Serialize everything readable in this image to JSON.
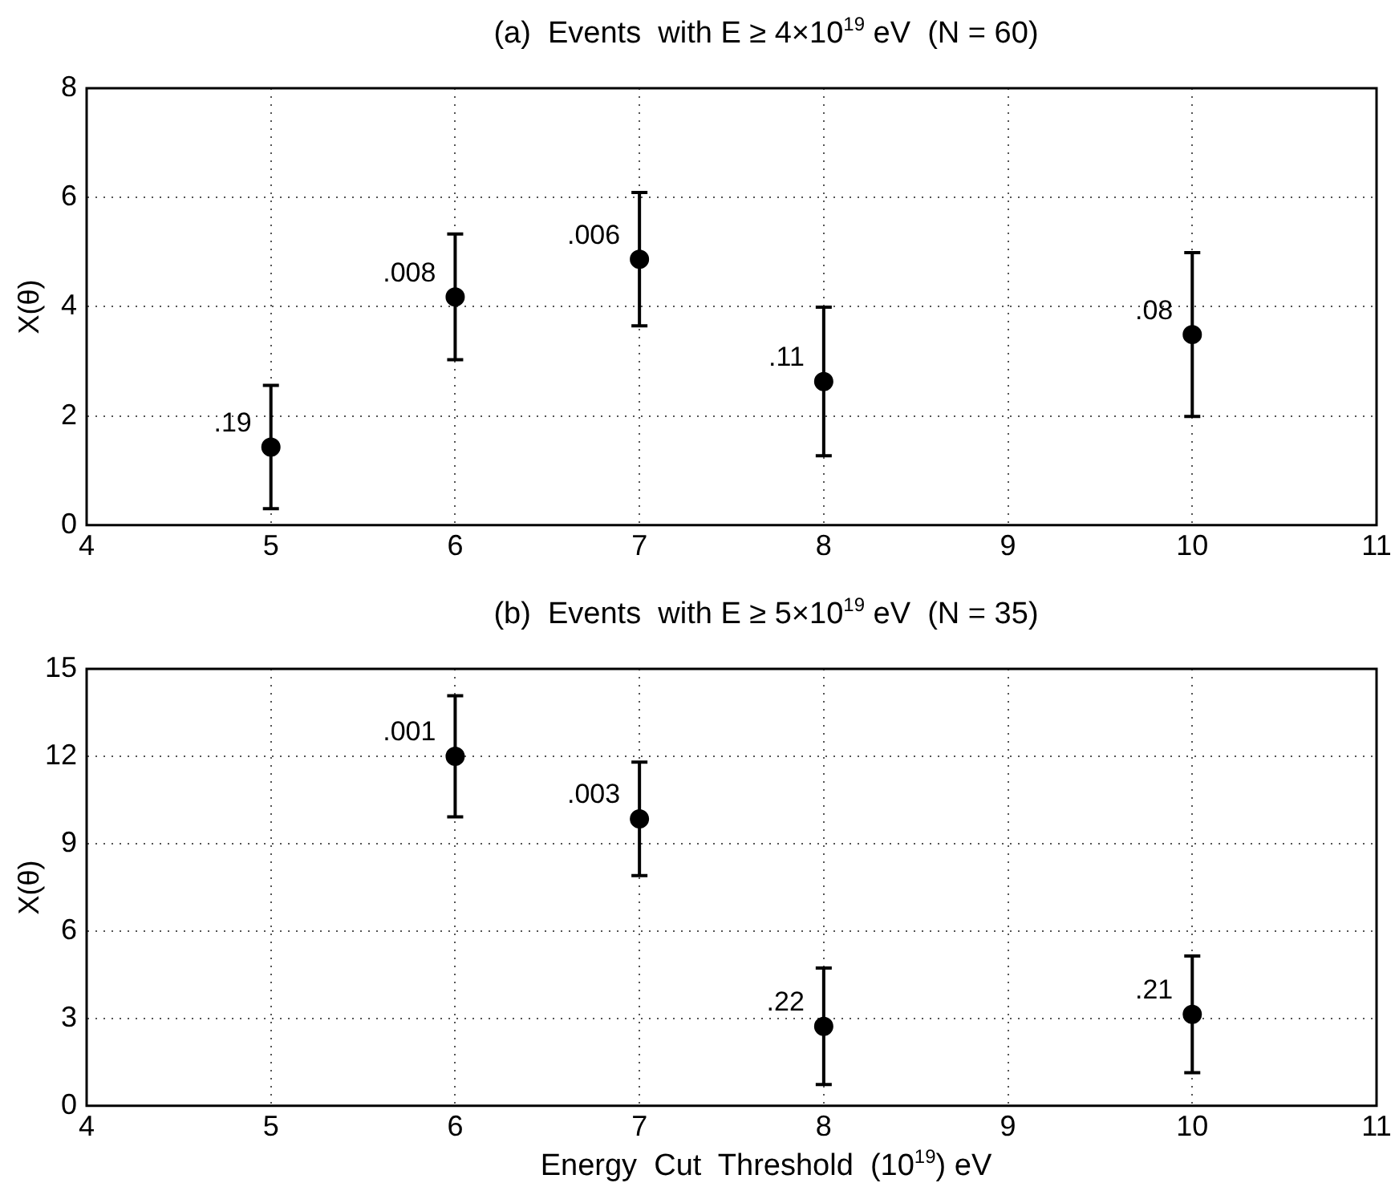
{
  "chart_data": [
    {
      "type": "scatter",
      "title": "(a)  Events  with E ≥ 4×10$^{19}$ eV  (N = 60)",
      "ylabel": "X(θ)",
      "x": [
        5,
        6,
        7,
        8,
        10
      ],
      "xlim": [
        4,
        11
      ],
      "xticks": [
        4,
        5,
        6,
        7,
        8,
        9,
        10,
        11
      ],
      "ylim": [
        0,
        8
      ],
      "yticks": [
        0,
        2,
        4,
        6,
        8
      ],
      "grid": true,
      "marker": "circle",
      "series": [
        {
          "color": "#000000",
          "values": [
            1.43,
            4.18,
            4.87,
            2.63,
            3.49
          ],
          "errors": [
            1.13,
            1.15,
            1.22,
            1.36,
            1.5
          ]
        }
      ],
      "annotations": [
        {
          "text": ".19",
          "x": 5,
          "y": 1.43
        },
        {
          "text": ".008",
          "x": 6,
          "y": 4.18
        },
        {
          "text": ".006",
          "x": 7,
          "y": 4.87
        },
        {
          "text": ".11",
          "x": 8,
          "y": 2.63
        },
        {
          "text": ".08",
          "x": 10,
          "y": 3.49
        }
      ]
    },
    {
      "type": "scatter",
      "title": "(b)  Events  with E ≥ 5×10$^{19}$ eV  (N = 35)",
      "xlabel": "Energy  Cut  Threshold  (10$^{19}$) eV",
      "ylabel": "X(θ)",
      "x": [
        6,
        7,
        8,
        10
      ],
      "xlim": [
        4,
        11
      ],
      "xticks": [
        4,
        5,
        6,
        7,
        8,
        9,
        10,
        11
      ],
      "ylim": [
        0,
        15
      ],
      "yticks": [
        0,
        3,
        6,
        9,
        12,
        15
      ],
      "grid": true,
      "marker": "circle",
      "series": [
        {
          "color": "#000000",
          "values": [
            12.0,
            9.85,
            2.73,
            3.14
          ],
          "errors": [
            2.08,
            1.95,
            2.0,
            2.0
          ]
        }
      ],
      "annotations": [
        {
          "text": ".001",
          "x": 6,
          "y": 12.0
        },
        {
          "text": ".003",
          "x": 7,
          "y": 9.85
        },
        {
          "text": ".22",
          "x": 8,
          "y": 2.73
        },
        {
          "text": ".21",
          "x": 10,
          "y": 3.14
        }
      ]
    }
  ]
}
